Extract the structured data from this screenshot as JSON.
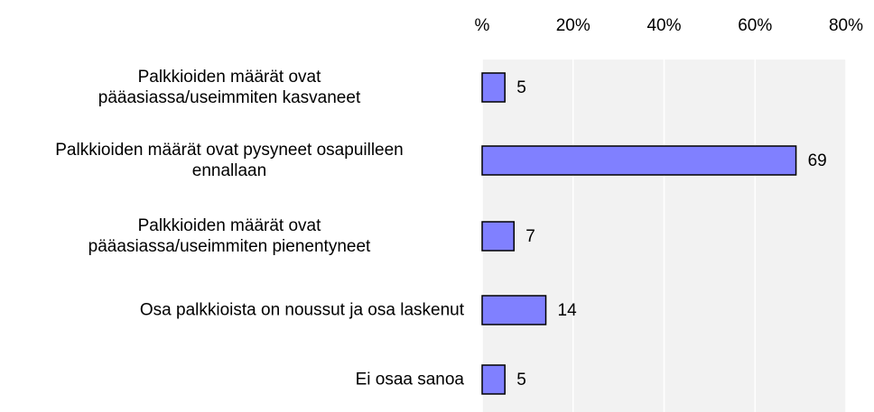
{
  "chart_data": {
    "type": "hbar",
    "categories": [
      "Palkkioiden määrät ovat\npääasiassa/useimmiten kasvaneet",
      "Palkkioiden määrät ovat pysyneet osapuilleen\nennallaan",
      "Palkkioiden määrät ovat\npääasiassa/useimmiten pienentyneet",
      "Osa palkkioista on noussut ja osa laskenut",
      "Ei osaa sanoa"
    ],
    "values": [
      5,
      69,
      7,
      14,
      5
    ],
    "color": "#8080ff",
    "xlim": [
      0,
      80
    ],
    "xticks": [
      {
        "value": 0,
        "label": "%"
      },
      {
        "value": 20,
        "label": "20%"
      },
      {
        "value": 40,
        "label": "40%"
      },
      {
        "value": 60,
        "label": "60%"
      },
      {
        "value": 80,
        "label": "80%"
      }
    ],
    "grid": true
  }
}
